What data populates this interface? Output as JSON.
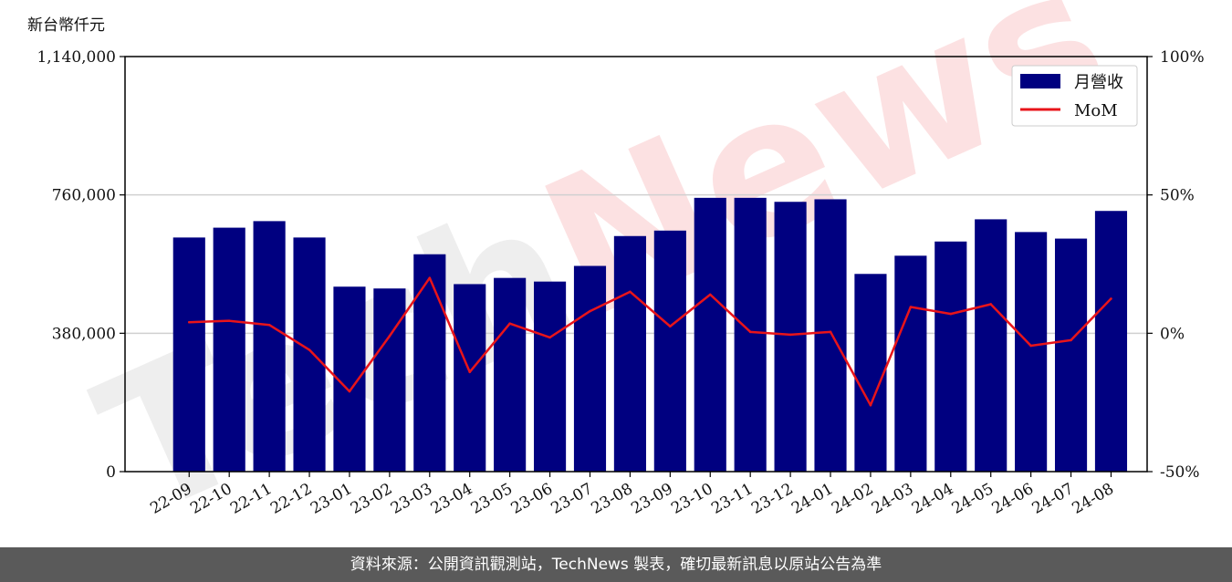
{
  "chart_data": {
    "type": "bar",
    "unit_label": "新台幣仟元",
    "categories": [
      "22-09",
      "22-10",
      "22-11",
      "22-12",
      "23-01",
      "23-02",
      "23-03",
      "23-04",
      "23-05",
      "23-06",
      "23-07",
      "23-08",
      "23-09",
      "23-10",
      "23-11",
      "23-12",
      "24-01",
      "24-02",
      "24-03",
      "24-04",
      "24-05",
      "24-06",
      "24-07",
      "24-08"
    ],
    "series": [
      {
        "name": "月營收",
        "axis": "left",
        "type": "bar",
        "color": "#000080",
        "values": [
          643000,
          670000,
          688000,
          643000,
          508000,
          503000,
          597000,
          515000,
          532000,
          522000,
          565000,
          647000,
          662000,
          752000,
          752000,
          741000,
          748000,
          543000,
          593000,
          632000,
          693000,
          658000,
          640000,
          716000
        ]
      },
      {
        "name": "MoM",
        "axis": "right",
        "type": "line",
        "color": "#e8141a",
        "values": [
          4,
          4.5,
          3,
          -6,
          -21,
          -1,
          20,
          -14,
          3.5,
          -1.5,
          8,
          15,
          2.5,
          14,
          0.5,
          -0.5,
          0.5,
          -26,
          9.5,
          7,
          10.5,
          -4.5,
          -2.5,
          12.5
        ]
      }
    ],
    "y_left": {
      "range": [
        0,
        1140000
      ],
      "ticks": [
        "0",
        "380,000",
        "760,000",
        "1,140,000"
      ]
    },
    "y_right": {
      "range": [
        -50,
        100
      ],
      "ticks": [
        "-50%",
        "0%",
        "50%",
        "100%"
      ]
    },
    "grid": "horizontal",
    "legend": "top-right",
    "watermark": "TechNews"
  },
  "footer": {
    "text": "資料來源：公開資訊觀測站，TechNews 製表，確切最新訊息以原站公告為準"
  }
}
